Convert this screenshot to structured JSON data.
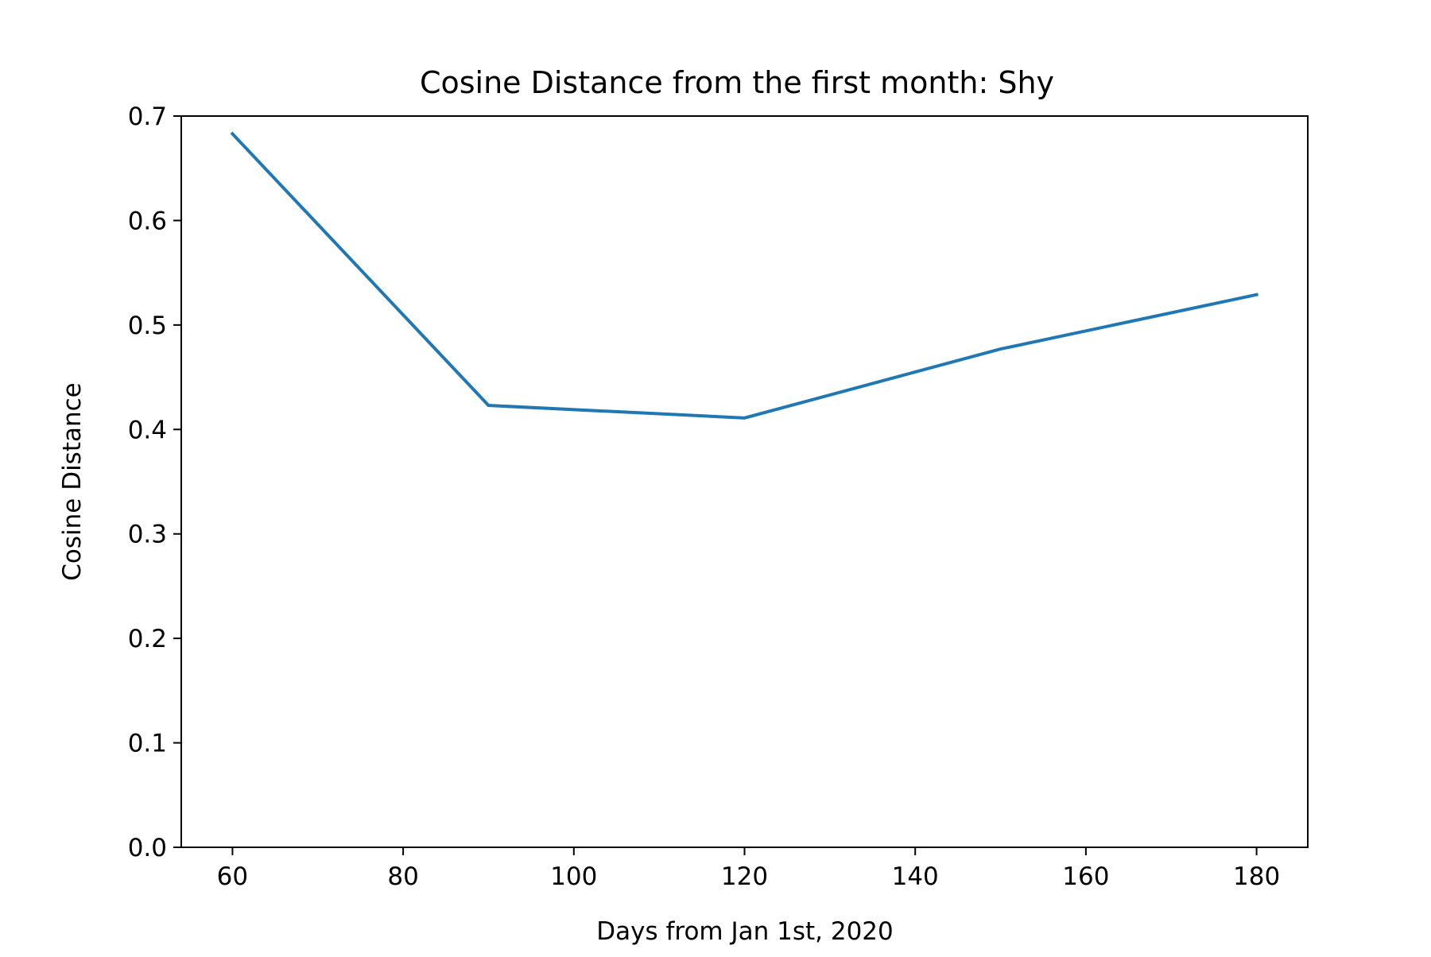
{
  "chart_data": {
    "type": "line",
    "title": "Cosine Distance from the first month: Shy",
    "xlabel": "Days from Jan 1st, 2020",
    "ylabel": "Cosine Distance",
    "x": [
      60,
      90,
      120,
      150,
      180
    ],
    "series": [
      {
        "values": [
          0.683,
          0.423,
          0.411,
          0.477,
          0.529
        ],
        "color": "#1f77b4"
      }
    ],
    "xlim": [
      54,
      186
    ],
    "ylim": [
      0.0,
      0.7
    ],
    "x_ticks": [
      60,
      80,
      100,
      120,
      140,
      160,
      180
    ],
    "x_tick_labels": [
      "60",
      "80",
      "100",
      "120",
      "140",
      "160",
      "180"
    ],
    "y_ticks": [
      0.0,
      0.1,
      0.2,
      0.3,
      0.4,
      0.5,
      0.6,
      0.7
    ],
    "y_tick_labels": [
      "0.0",
      "0.1",
      "0.2",
      "0.3",
      "0.4",
      "0.5",
      "0.6",
      "0.7"
    ],
    "grid": false,
    "legend": "none"
  }
}
